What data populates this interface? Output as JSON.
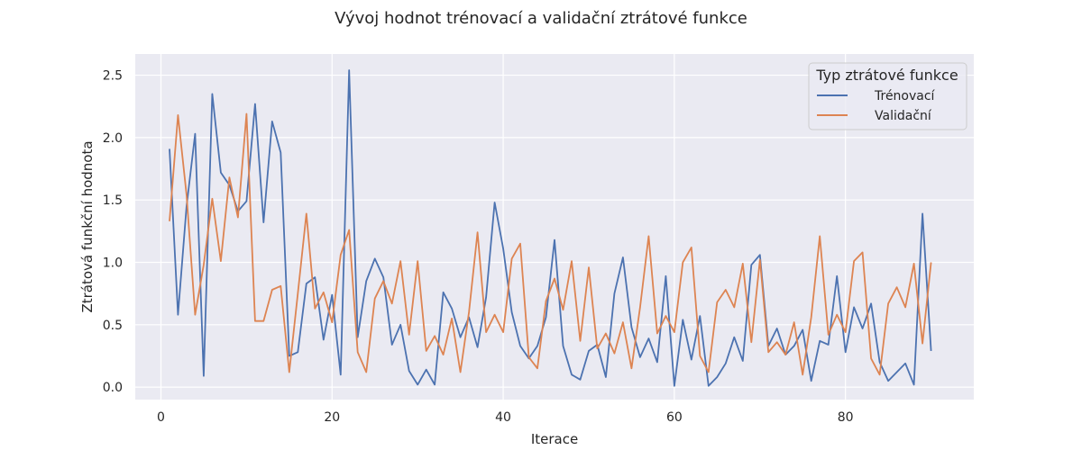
{
  "chart_data": {
    "type": "line",
    "title": "Vývoj hodnot trénovací a validační ztrátové funkce",
    "xlabel": "Iterace",
    "ylabel": "Ztrátová funkční hodnota",
    "xlim": [
      -3,
      95
    ],
    "ylim": [
      -0.1,
      2.67
    ],
    "xticks": [
      0,
      20,
      40,
      60,
      80
    ],
    "yticks": [
      0.0,
      0.5,
      1.0,
      1.5,
      2.0,
      2.5
    ],
    "ytick_labels": [
      "0.0",
      "0.5",
      "1.0",
      "1.5",
      "2.0",
      "2.5"
    ],
    "grid": true,
    "legend": {
      "title": "Typ ztrátové funkce",
      "placement": "top-right"
    },
    "series": [
      {
        "name": "Trénovací",
        "color": "#4c72b0",
        "x": [
          1,
          2,
          3,
          4,
          5,
          6,
          7,
          8,
          9,
          10,
          11,
          12,
          13,
          14,
          15,
          16,
          17,
          18,
          19,
          20,
          21,
          22,
          23,
          24,
          25,
          26,
          27,
          28,
          29,
          30,
          31,
          32,
          33,
          34,
          35,
          36,
          37,
          38,
          39,
          40,
          41,
          42,
          43,
          44,
          45,
          46,
          47,
          48,
          49,
          50,
          51,
          52,
          53,
          54,
          55,
          56,
          57,
          58,
          59,
          60,
          61,
          62,
          63,
          64,
          65,
          66,
          67,
          68,
          69,
          70,
          71,
          72,
          73,
          74,
          75,
          76,
          77,
          78,
          79,
          80,
          81,
          82,
          83,
          84,
          85,
          86,
          87,
          88,
          89,
          90
        ],
        "y": [
          1.91,
          0.58,
          1.45,
          2.03,
          0.09,
          2.35,
          1.72,
          1.62,
          1.41,
          1.49,
          2.27,
          1.32,
          2.13,
          1.88,
          0.25,
          0.28,
          0.83,
          0.88,
          0.38,
          0.74,
          0.1,
          2.54,
          0.4,
          0.85,
          1.03,
          0.88,
          0.34,
          0.5,
          0.13,
          0.02,
          0.14,
          0.02,
          0.76,
          0.63,
          0.4,
          0.56,
          0.32,
          0.72,
          1.48,
          1.11,
          0.6,
          0.33,
          0.23,
          0.33,
          0.56,
          1.18,
          0.33,
          0.1,
          0.06,
          0.29,
          0.34,
          0.08,
          0.75,
          1.04,
          0.48,
          0.24,
          0.39,
          0.2,
          0.89,
          0.01,
          0.54,
          0.22,
          0.57,
          0.01,
          0.08,
          0.19,
          0.4,
          0.21,
          0.98,
          1.06,
          0.33,
          0.47,
          0.26,
          0.33,
          0.46,
          0.05,
          0.37,
          0.34,
          0.89,
          0.28,
          0.64,
          0.47,
          0.67,
          0.2,
          0.05,
          0.12,
          0.19,
          0.02,
          1.39,
          0.29
        ]
      },
      {
        "name": "Validační",
        "color": "#dd8452",
        "x": [
          1,
          2,
          3,
          4,
          5,
          6,
          7,
          8,
          9,
          10,
          11,
          12,
          13,
          14,
          15,
          16,
          17,
          18,
          19,
          20,
          21,
          22,
          23,
          24,
          25,
          26,
          27,
          28,
          29,
          30,
          31,
          32,
          33,
          34,
          35,
          36,
          37,
          38,
          39,
          40,
          41,
          42,
          43,
          44,
          45,
          46,
          47,
          48,
          49,
          50,
          51,
          52,
          53,
          54,
          55,
          56,
          57,
          58,
          59,
          60,
          61,
          62,
          63,
          64,
          65,
          66,
          67,
          68,
          69,
          70,
          71,
          72,
          73,
          74,
          75,
          76,
          77,
          78,
          79,
          80,
          81,
          82,
          83,
          84,
          85,
          86,
          87,
          88,
          89,
          90
        ],
        "y": [
          1.33,
          2.18,
          1.54,
          0.58,
          0.98,
          1.51,
          1.01,
          1.68,
          1.36,
          2.19,
          0.53,
          0.53,
          0.78,
          0.81,
          0.12,
          0.75,
          1.39,
          0.63,
          0.76,
          0.52,
          1.06,
          1.26,
          0.28,
          0.12,
          0.71,
          0.85,
          0.67,
          1.01,
          0.42,
          1.01,
          0.29,
          0.41,
          0.26,
          0.55,
          0.12,
          0.6,
          1.24,
          0.44,
          0.58,
          0.44,
          1.03,
          1.15,
          0.24,
          0.15,
          0.69,
          0.87,
          0.62,
          1.01,
          0.37,
          0.96,
          0.31,
          0.43,
          0.27,
          0.52,
          0.15,
          0.64,
          1.21,
          0.43,
          0.57,
          0.44,
          1.0,
          1.12,
          0.25,
          0.12,
          0.68,
          0.78,
          0.64,
          0.99,
          0.36,
          1.02,
          0.28,
          0.36,
          0.26,
          0.52,
          0.1,
          0.56,
          1.21,
          0.42,
          0.58,
          0.44,
          1.01,
          1.08,
          0.23,
          0.1,
          0.67,
          0.8,
          0.64,
          0.99,
          0.35,
          1.0
        ]
      }
    ]
  }
}
